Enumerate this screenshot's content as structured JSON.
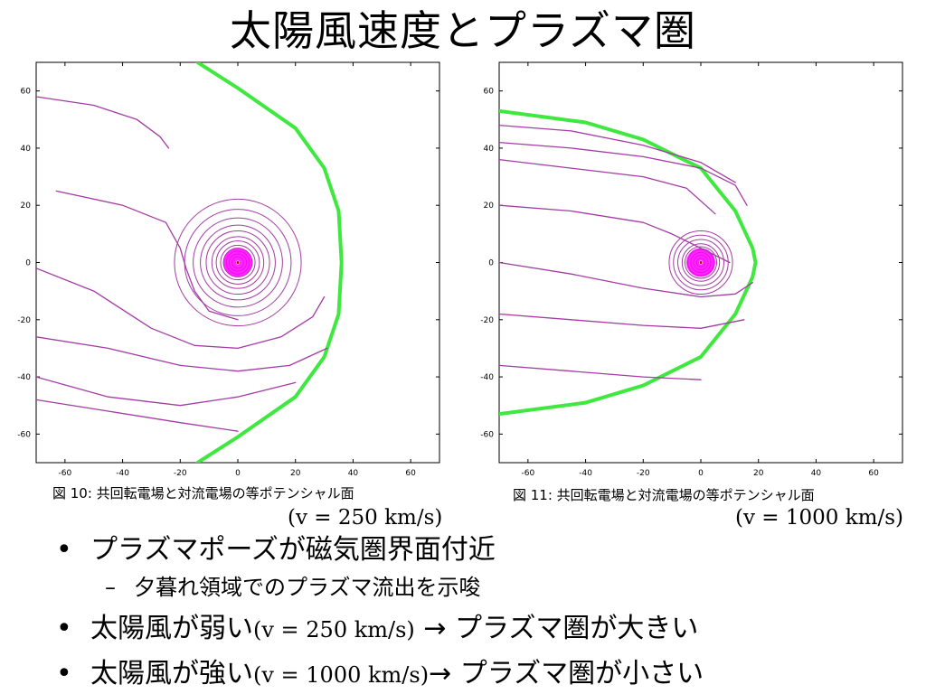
{
  "slide": {
    "title": "太陽風速度とプラズマ圏"
  },
  "figures": [
    {
      "caption": "図 10: 共回転電場と対流電場の等ポテンシャル面",
      "speed_label": "(v = 250 km/s)"
    },
    {
      "caption": "図 11: 共回転電場と対流電場の等ポテンシャル面",
      "speed_label": "(v = 1000 km/s)"
    }
  ],
  "bullets": {
    "b1": "プラズマポーズが磁気圏界面付近",
    "b1_sub": "夕暮れ領域でのプラズマ流出を示唆",
    "b2_pre": "太陽風が弱い",
    "b2_math": "(v = 250 km/s)",
    "b2_post": "→ プラズマ圏が大きい",
    "b3_pre": "太陽風が強い",
    "b3_math": "(v = 1000 km/s)",
    "b3_post": "→ プラズマ圏が小さい",
    "bullet_glyph": "•",
    "dash_glyph": "–"
  },
  "chart_data": [
    {
      "type": "line",
      "title": "",
      "xlabel": "",
      "ylabel": "",
      "xlim": [
        -70,
        70
      ],
      "ylim": [
        -70,
        70
      ],
      "xticks": [
        -60,
        -40,
        -20,
        0,
        20,
        40,
        60
      ],
      "yticks": [
        60,
        40,
        20,
        0,
        -20,
        -40,
        -60
      ],
      "tick_labels_x": [
        "-60",
        "-40",
        "-20",
        "0",
        "20",
        "40",
        "60"
      ],
      "tick_labels_y": [
        "60",
        "40",
        "20",
        "0",
        "-20",
        "-40",
        "-60"
      ],
      "grid": false,
      "colors": {
        "boundary": "#3ee83e",
        "contour": "#a33ca3",
        "core": "#ff00ff"
      },
      "series": [
        {
          "role": "magnetopause",
          "x": [
            -14,
            0,
            20,
            30,
            35,
            36,
            35,
            30,
            20,
            0,
            -14
          ],
          "y": [
            70,
            61,
            47,
            33,
            18,
            0,
            -18,
            -33,
            -47,
            -61,
            -70
          ]
        },
        {
          "role": "contour",
          "x": [
            -70,
            -50,
            -35,
            -27,
            -24
          ],
          "y": [
            58,
            55,
            50,
            44,
            40
          ]
        },
        {
          "role": "contour",
          "x": [
            -63,
            -40,
            -25,
            -20,
            -18,
            -15,
            -10,
            0
          ],
          "y": [
            25,
            20,
            14,
            5,
            -2,
            -10,
            -17,
            -20
          ]
        },
        {
          "role": "contour",
          "x": [
            -70,
            -50,
            -30,
            -15,
            0,
            15,
            26,
            30
          ],
          "y": [
            -2,
            -10,
            -23,
            -29,
            -30,
            -26,
            -19,
            -12
          ]
        },
        {
          "role": "contour",
          "x": [
            -70,
            -45,
            -20,
            0,
            18,
            31
          ],
          "y": [
            -26,
            -30,
            -36,
            -38,
            -36,
            -30
          ]
        },
        {
          "role": "contour",
          "x": [
            -70,
            -45,
            -20,
            0,
            20
          ],
          "y": [
            -40,
            -47,
            -50,
            -47,
            -42
          ]
        },
        {
          "role": "contour",
          "x": [
            -70,
            -45,
            -20,
            0
          ],
          "y": [
            -48,
            -52,
            -56,
            -59
          ]
        }
      ]
    },
    {
      "type": "line",
      "title": "",
      "xlabel": "",
      "ylabel": "",
      "xlim": [
        -70,
        70
      ],
      "ylim": [
        -70,
        70
      ],
      "xticks": [
        -60,
        -40,
        -20,
        0,
        20,
        40,
        60
      ],
      "yticks": [
        60,
        40,
        20,
        0,
        -20,
        -40,
        -60
      ],
      "tick_labels_x": [
        "-60",
        "-40",
        "-20",
        "0",
        "20",
        "40",
        "60"
      ],
      "tick_labels_y": [
        "60",
        "40",
        "20",
        "0",
        "-20",
        "-40",
        "-60"
      ],
      "grid": false,
      "colors": {
        "boundary": "#3ee83e",
        "contour": "#a33ca3",
        "core": "#ff00ff"
      },
      "series": [
        {
          "role": "magnetopause",
          "x": [
            -70,
            -40,
            -20,
            0,
            12,
            18,
            19,
            18,
            12,
            0,
            -20,
            -40,
            -70
          ],
          "y": [
            53,
            49,
            43,
            33,
            18,
            5,
            0,
            -5,
            -18,
            -33,
            -43,
            -49,
            -53
          ]
        },
        {
          "role": "contour",
          "x": [
            -70,
            -45,
            -20,
            0,
            12
          ],
          "y": [
            48,
            46,
            41,
            35,
            28
          ]
        },
        {
          "role": "contour",
          "x": [
            -70,
            -45,
            -20,
            0,
            12,
            16
          ],
          "y": [
            42,
            40,
            37,
            33,
            27,
            20
          ]
        },
        {
          "role": "contour",
          "x": [
            -70,
            -45,
            -20,
            -5,
            5
          ],
          "y": [
            36,
            33,
            30,
            26,
            17
          ]
        },
        {
          "role": "contour",
          "x": [
            -70,
            -45,
            -20,
            -10,
            0,
            10
          ],
          "y": [
            20,
            18,
            14,
            10,
            5,
            0
          ]
        },
        {
          "role": "contour",
          "x": [
            -70,
            -45,
            -20,
            0,
            12,
            18
          ],
          "y": [
            0,
            -4,
            -9,
            -12,
            -11,
            -7
          ]
        },
        {
          "role": "contour",
          "x": [
            -70,
            -45,
            -20,
            0,
            15
          ],
          "y": [
            -18,
            -20,
            -22,
            -23,
            -20
          ]
        },
        {
          "role": "contour",
          "x": [
            -70,
            -45,
            -20,
            0
          ],
          "y": [
            -36,
            -38,
            -40,
            -41
          ]
        }
      ]
    }
  ]
}
